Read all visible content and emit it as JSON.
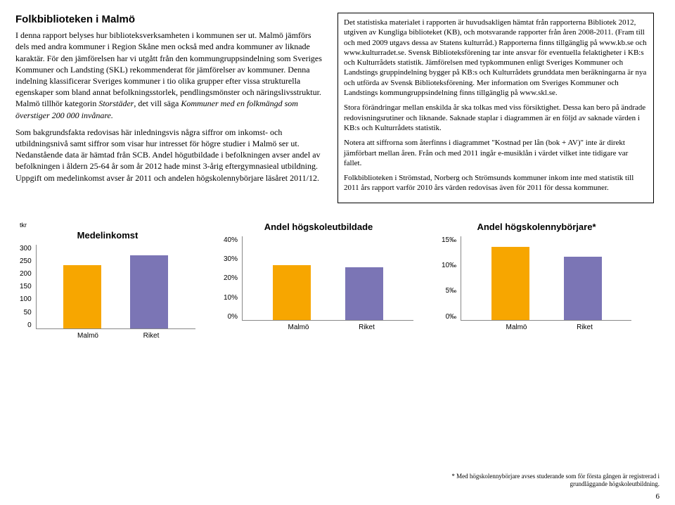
{
  "title": "Folkbiblioteken i Malmö",
  "left_paragraphs": [
    "I denna rapport belyses hur biblioteksverksamheten i kommunen ser ut. Malmö jämförs dels med andra kommuner i Region Skåne men också med andra kommuner av liknade karaktär. För den jämförelsen har vi utgått från den kommungruppsindelning som Sveriges Kommuner och Landsting (SKL) rekommenderat för jämförelser av kommuner. Denna indelning klassificerar Sveriges kommuner i tio olika grupper efter vissa strukturella egenskaper som bland annat befolkningsstorlek, pendlingsmönster och näringslivsstruktur. Malmö tillhör kategorin <i>Storstäder</i>, det vill säga <i>Kommuner med en folkmängd som överstiger 200 000 invånare.</i>",
    "Som bakgrundsfakta redovisas här inledningsvis några siffror om inkomst- och utbildningsnivå samt siffror som visar hur intresset för högre studier i Malmö ser ut. Nedanstående data är hämtad från SCB. Andel högutbildade i befolkningen avser andel av befolkningen i åldern 25-64 år som år 2012 hade minst 3-årig eftergymnasieal utbildning. Uppgift om medelinkomst avser år 2011 och andelen högskolennybörjare läsåret 2011/12."
  ],
  "right_paragraphs": [
    "Det statistiska materialet i rapporten är huvudsakligen hämtat från rapporterna Bibliotek 2012, utgiven av Kungliga biblioteket (KB), och motsvarande rapporter från åren 2008-2011. (Fram till och med 2009 utgavs dessa av Statens kulturråd.) Rapporterna finns tillgänglig på www.kb.se och www.kulturradet.se. Svensk Biblioteksförening tar inte ansvar för eventuella felaktigheter i KB:s och Kulturrådets statistik. Jämförelsen med typkommunen enligt Sveriges Kommuner och Landstings gruppindelning bygger på KB:s och Kulturrådets grunddata men beräkningarna är nya och utförda av Svensk Biblioteksförening. Mer information om Sveriges Kommuner och Landstings kommungruppsindelning finns tillgänglig på www.skl.se.",
    "Stora förändringar mellan enskilda år ska tolkas med viss försiktighet. Dessa kan bero på ändrade redovisningsrutiner och liknande. Saknade staplar i diagrammen är en följd av saknade värden i KB:s och Kulturrådets statistik.",
    "Notera att siffrorna som återfinns i diagrammet \"Kostnad per lån (bok + AV)\" inte är direkt jämförbart mellan åren. Från och med 2011 ingår e-musiklån i värdet vilket inte tidigare var fallet.",
    "Folkbiblioteken i Strömstad, Norberg och Strömsunds kommuner inkom inte med statistik till 2011 års rapport varför 2010 års värden redovisas även för 2011 för dessa kommuner."
  ],
  "chart1": {
    "title": "Medelinkomst",
    "y_unit": "tkr",
    "ymax": 300,
    "yticks": [
      "300",
      "250",
      "200",
      "150",
      "100",
      "50",
      "0"
    ],
    "categories": [
      "Malmö",
      "Riket"
    ],
    "values": [
      225,
      260
    ],
    "bar_colors": [
      "#f7a600",
      "#7b75b5"
    ],
    "border_color": "#888888"
  },
  "chart2": {
    "title": "Andel högskoleutbildade",
    "ymax": 40,
    "yticks": [
      "40%",
      "30%",
      "20%",
      "10%",
      "0%"
    ],
    "categories": [
      "Malmö",
      "Riket"
    ],
    "values": [
      26,
      25
    ],
    "bar_colors": [
      "#f7a600",
      "#7b75b5"
    ],
    "border_color": "#888888"
  },
  "chart3": {
    "title": "Andel högskolennybörjare*",
    "ymax": 15,
    "yticks": [
      "15‰",
      "10‰",
      "5‰",
      "0‰"
    ],
    "categories": [
      "Malmö",
      "Riket"
    ],
    "values": [
      13.0,
      11.2
    ],
    "bar_colors": [
      "#f7a600",
      "#7b75b5"
    ],
    "border_color": "#888888"
  },
  "footnote": "* Med högskolennybörjare avses studerande som för första gången är registrerad i grundläggande högskoleutbildning.",
  "page_number": "6"
}
